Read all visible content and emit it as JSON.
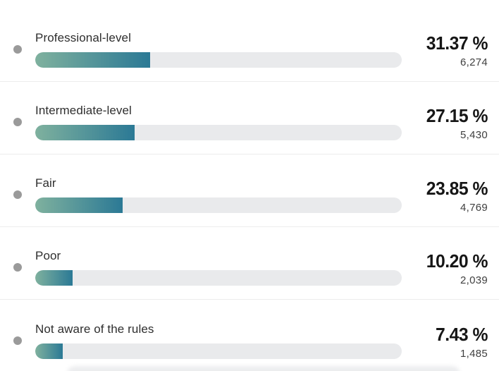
{
  "rows": [
    {
      "label": "Professional-level",
      "percent_display": "31.37 %",
      "percent_value": 31.37,
      "count": "6,274"
    },
    {
      "label": "Intermediate-level",
      "percent_display": "27.15 %",
      "percent_value": 27.15,
      "count": "5,430"
    },
    {
      "label": "Fair",
      "percent_display": "23.85 %",
      "percent_value": 23.85,
      "count": "4,769"
    },
    {
      "label": "Poor",
      "percent_display": "10.20 %",
      "percent_value": 10.2,
      "count": "2,039"
    },
    {
      "label": "Not aware of the rules",
      "percent_display": "7.43 %",
      "percent_value": 7.43,
      "count": "1,485"
    }
  ],
  "colors": {
    "fill_gradient_start": "#7fb19e",
    "fill_gradient_end": "#2b7995",
    "track": "#e9eaec",
    "bullet": "#9a9a9a",
    "divider": "#ececec",
    "percent_text": "#161616",
    "count_text": "#3f3f3f",
    "label_text": "#2e2e2e"
  },
  "chart_data": {
    "type": "bar",
    "orientation": "horizontal",
    "categories": [
      "Professional-level",
      "Intermediate-level",
      "Fair",
      "Poor",
      "Not aware of the rules"
    ],
    "values": [
      31.37,
      27.15,
      23.85,
      10.2,
      7.43
    ],
    "counts": [
      6274,
      5430,
      4769,
      2039,
      1485
    ],
    "value_suffix": "%",
    "xlim": [
      0,
      100
    ],
    "grid": false,
    "legend": false
  }
}
